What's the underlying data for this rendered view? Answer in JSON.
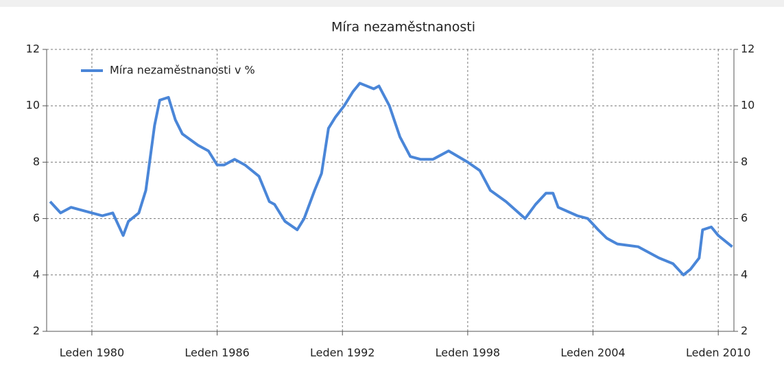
{
  "chart_data": {
    "type": "line",
    "title": "Míra nezaměstnanosti",
    "x": [
      "1978-01",
      "1978-07",
      "1979-01",
      "1979-07",
      "1980-01",
      "1980-07",
      "1981-01",
      "1981-07",
      "1981-10",
      "1982-04",
      "1982-08",
      "1983-01",
      "1983-04",
      "1983-09",
      "1984-01",
      "1984-05",
      "1985-02",
      "1985-08",
      "1986-01",
      "1986-05",
      "1986-11",
      "1987-05",
      "1988-01",
      "1988-07",
      "1988-10",
      "1989-04",
      "1989-11",
      "1990-03",
      "1990-09",
      "1991-01",
      "1991-05",
      "1991-09",
      "1992-02",
      "1992-07",
      "1992-11",
      "1993-07",
      "1993-10",
      "1994-04",
      "1994-10",
      "1995-04",
      "1995-10",
      "1996-05",
      "1997-02",
      "1998-01",
      "1998-08",
      "1999-02",
      "1999-11",
      "2000-10",
      "2001-04",
      "2001-10",
      "2002-02",
      "2002-05",
      "2003-04",
      "2003-10",
      "2004-04",
      "2004-09",
      "2005-03",
      "2006-03",
      "2007-03",
      "2007-11",
      "2008-05",
      "2008-09",
      "2009-02",
      "2009-04",
      "2009-09",
      "2010-01",
      "2010-09"
    ],
    "series": [
      {
        "name": "Míra nezaměstnanosti v %",
        "color": "#4a86d8",
        "values": [
          6.6,
          6.2,
          6.4,
          6.3,
          6.2,
          6.1,
          6.2,
          5.4,
          5.9,
          6.2,
          7.0,
          9.3,
          10.2,
          10.3,
          9.5,
          9.0,
          8.6,
          8.4,
          7.9,
          7.9,
          8.1,
          7.9,
          7.5,
          6.6,
          6.5,
          5.9,
          5.6,
          6.0,
          7.0,
          7.6,
          9.2,
          9.6,
          10.0,
          10.5,
          10.8,
          10.6,
          10.7,
          10.0,
          8.9,
          8.2,
          8.1,
          8.1,
          8.4,
          8.0,
          7.7,
          7.0,
          6.6,
          6.0,
          6.5,
          6.9,
          6.9,
          6.4,
          6.1,
          6.0,
          5.6,
          5.3,
          5.1,
          5.0,
          4.6,
          4.4,
          4.0,
          4.2,
          4.6,
          5.6,
          5.7,
          5.4,
          5.0
        ]
      }
    ],
    "xlim": [
      "1977-11",
      "2010-10"
    ],
    "xticks": [
      {
        "value": "1980-01",
        "label": "Leden 1980"
      },
      {
        "value": "1986-01",
        "label": "Leden 1986"
      },
      {
        "value": "1992-01",
        "label": "Leden 1992"
      },
      {
        "value": "1998-01",
        "label": "Leden 1998"
      },
      {
        "value": "2004-01",
        "label": "Leden 2004"
      },
      {
        "value": "2010-01",
        "label": "Leden 2010"
      }
    ],
    "ylim": [
      2,
      12
    ],
    "yticks": [
      2,
      4,
      6,
      8,
      10,
      12
    ],
    "y2lim": [
      2,
      12
    ],
    "y2ticks": [
      2,
      4,
      6,
      8,
      10,
      12
    ],
    "grid": true,
    "legend": "top-left"
  }
}
